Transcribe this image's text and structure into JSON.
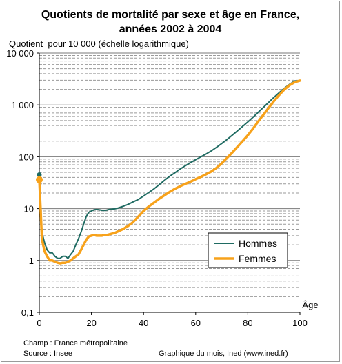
{
  "chart_data": {
    "type": "line",
    "title": "Quotients de mortalité par sexe et âge en France,",
    "subtitle": "années 2002 à 2004",
    "ylabel": "Quotient  pour 10 000 (échelle logarithmique)",
    "xlabel": "Âge",
    "y_scale": "log",
    "ylim": [
      0.1,
      10000
    ],
    "xlim": [
      0,
      100
    ],
    "x_ticks": [
      "0",
      "20",
      "40",
      "60",
      "80",
      "100"
    ],
    "y_ticks": [
      "0,1",
      "1",
      "10",
      "100",
      "1 000",
      "10 000"
    ],
    "grid": "horizontal, minor dashed",
    "legend_position": "bottom-right",
    "series": [
      {
        "name": "Hommes",
        "color": "#1f6b62",
        "x": [
          0,
          1,
          2,
          3,
          4,
          5,
          6,
          7,
          8,
          9,
          10,
          11,
          12,
          13,
          14,
          15,
          16,
          17,
          18,
          19,
          20,
          21,
          22,
          23,
          24,
          25,
          26,
          27,
          28,
          29,
          30,
          32,
          34,
          36,
          38,
          40,
          42,
          44,
          46,
          48,
          50,
          52,
          54,
          56,
          58,
          60,
          62,
          64,
          66,
          68,
          70,
          72,
          74,
          76,
          78,
          80,
          82,
          84,
          86,
          88,
          90,
          92,
          94,
          96,
          98,
          100
        ],
        "values": [
          45,
          3.5,
          2.2,
          1.6,
          1.4,
          1.4,
          1.2,
          1.1,
          1.1,
          1.2,
          1.2,
          1.1,
          1.3,
          1.5,
          2.0,
          2.6,
          3.5,
          5.0,
          7.0,
          8.5,
          9.0,
          9.5,
          9.6,
          9.5,
          9.3,
          9.2,
          9.4,
          9.7,
          9.8,
          9.9,
          10.2,
          11,
          12,
          13.5,
          15,
          17.5,
          20.5,
          24,
          29,
          35,
          42,
          49,
          58,
          67,
          77,
          88,
          100,
          113,
          130,
          152,
          180,
          215,
          260,
          315,
          385,
          470,
          580,
          720,
          900,
          1120,
          1400,
          1720,
          2100,
          2500,
          2900,
          2950
        ]
      },
      {
        "name": "Femmes",
        "color": "#f7a21b",
        "x": [
          0,
          1,
          2,
          3,
          4,
          5,
          6,
          7,
          8,
          9,
          10,
          11,
          12,
          13,
          14,
          15,
          16,
          17,
          18,
          19,
          20,
          21,
          22,
          23,
          24,
          25,
          26,
          27,
          28,
          29,
          30,
          32,
          34,
          36,
          38,
          40,
          42,
          44,
          46,
          48,
          50,
          52,
          54,
          56,
          58,
          60,
          62,
          64,
          66,
          68,
          70,
          72,
          74,
          76,
          78,
          80,
          82,
          84,
          86,
          88,
          90,
          92,
          94,
          96,
          98,
          100
        ],
        "values": [
          36,
          2.6,
          1.5,
          1.2,
          1.0,
          1.0,
          0.95,
          0.9,
          0.88,
          0.9,
          0.9,
          0.95,
          1.0,
          1.1,
          1.2,
          1.3,
          1.6,
          2.0,
          2.5,
          2.9,
          3.0,
          3.1,
          3.0,
          3.0,
          3.0,
          3.1,
          3.1,
          3.2,
          3.3,
          3.4,
          3.6,
          4.0,
          4.6,
          5.5,
          7.0,
          9.0,
          11,
          13,
          15.5,
          18,
          21,
          24,
          27,
          30,
          33,
          37,
          41,
          46,
          52,
          61,
          75,
          95,
          120,
          155,
          200,
          260,
          350,
          480,
          650,
          880,
          1180,
          1550,
          1980,
          2400,
          2750,
          2950
        ]
      }
    ]
  },
  "footer": {
    "champ": "Champ : France métropolitaine",
    "source": "Source : Insee",
    "credit": "Graphique du mois, Ined (www.ined.fr)"
  }
}
